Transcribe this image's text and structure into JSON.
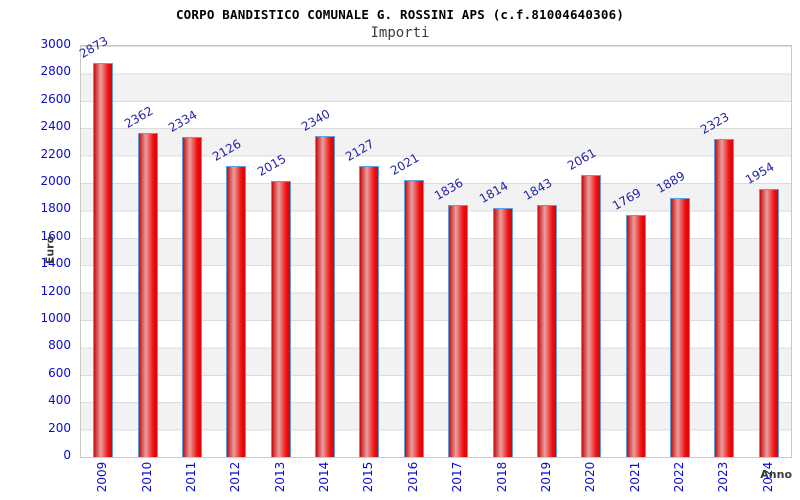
{
  "chart_data": {
    "type": "bar",
    "title": "CORPO BANDISTICO COMUNALE G. ROSSINI APS (c.f.81004640306)",
    "subtitle": "Importi",
    "xlabel": "Anno",
    "ylabel": "Euro",
    "categories": [
      "2009",
      "2010",
      "2011",
      "2012",
      "2013",
      "2014",
      "2015",
      "2016",
      "2017",
      "2018",
      "2019",
      "2020",
      "2021",
      "2022",
      "2023",
      "2024"
    ],
    "values": [
      2873,
      2362,
      2334,
      2126,
      2015,
      2340,
      2127,
      2021,
      1836,
      1814,
      1843,
      2061,
      1769,
      1889,
      2323,
      1954
    ],
    "ylim": [
      0,
      3000
    ],
    "ytick_step": 200,
    "yticks": [
      0,
      200,
      400,
      600,
      800,
      1000,
      1200,
      1400,
      1600,
      1800,
      2000,
      2200,
      2400,
      2600,
      2800,
      3000
    ],
    "grid": "horizontal gridlines with alternating white/gray bands",
    "legend": "none",
    "colors": {
      "bar_fill": "#ee1111",
      "bar_fill_highlight": "#e9a0a0",
      "bar_border": "#5e9fe0",
      "axis_tick_text": "#0b0bd0",
      "value_label_text": "#2222a8",
      "band_gray": "#f2f2f2",
      "gridline": "#dcdcdc",
      "title_text": "#000000",
      "axis_title_text": "#3c3c3c"
    }
  }
}
